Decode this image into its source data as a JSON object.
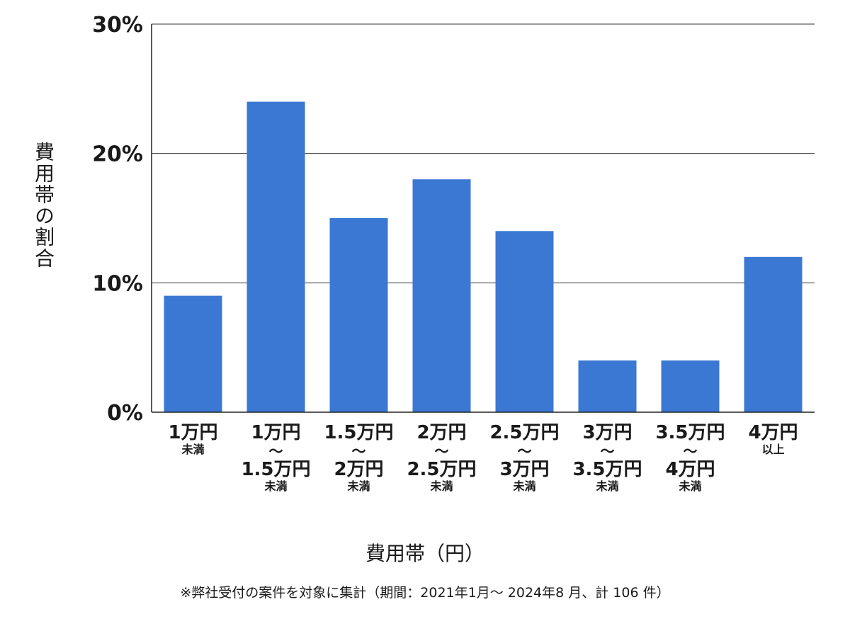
{
  "chart_data": {
    "type": "bar",
    "categories": [
      [
        "1万円",
        "未満"
      ],
      [
        "1万円",
        "〜",
        "1.5万円",
        "未満"
      ],
      [
        "1.5万円",
        "〜",
        "2万円",
        "未満"
      ],
      [
        "2万円",
        "〜",
        "2.5万円",
        "未満"
      ],
      [
        "2.5万円",
        "〜",
        "3万円",
        "未満"
      ],
      [
        "3万円",
        "〜",
        "3.5万円",
        "未満"
      ],
      [
        "3.5万円",
        "〜",
        "4万円",
        "未満"
      ],
      [
        "4万円",
        "以上"
      ]
    ],
    "values": [
      9,
      24,
      15,
      18,
      14,
      4,
      4,
      12
    ],
    "ylim": [
      0,
      30
    ],
    "yticks": [
      0,
      10,
      20,
      30
    ],
    "ytick_labels": [
      "0%",
      "10%",
      "20%",
      "30%"
    ],
    "xlabel": "費用帯（円）",
    "ylabel": "費用帯の割合",
    "note": "※弊社受付の案件を対象に集計（期間：2021年1月〜 2024年8 月、計 106 件）",
    "bar_color": "#3b78d4",
    "grid": true
  }
}
